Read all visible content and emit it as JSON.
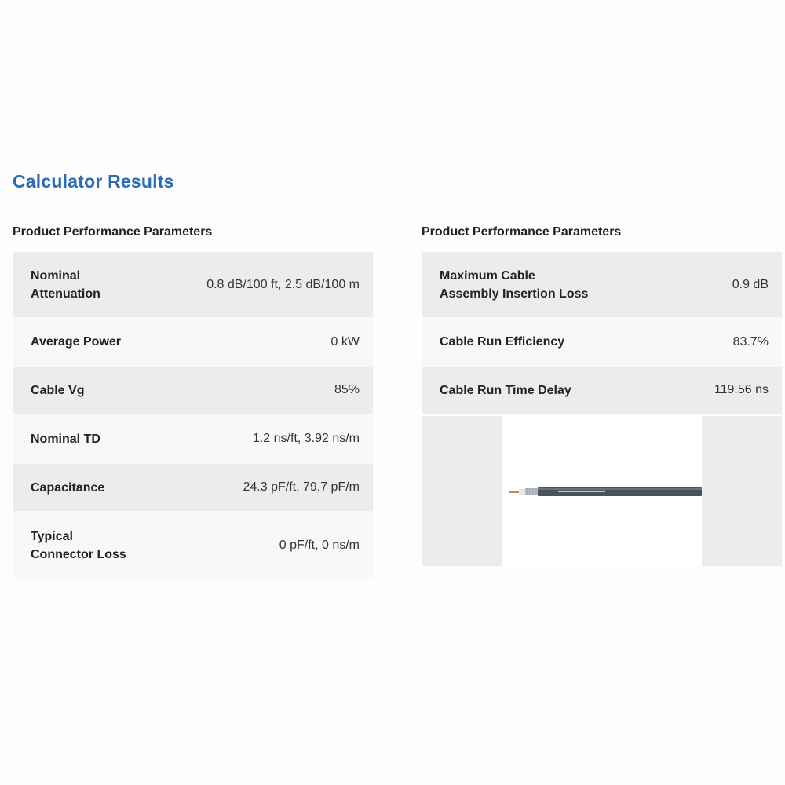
{
  "title": "Calculator Results",
  "left_panel": {
    "heading": "Product Performance Parameters",
    "rows": [
      {
        "label": "Nominal\nAttenuation",
        "value": "0.8 dB/100 ft, 2.5 dB/100 m"
      },
      {
        "label": "Average Power",
        "value": "0 kW"
      },
      {
        "label": "Cable Vg",
        "value": "85%"
      },
      {
        "label": "Nominal TD",
        "value": "1.2 ns/ft, 3.92 ns/m"
      },
      {
        "label": "Capacitance",
        "value": "24.3 pF/ft, 79.7 pF/m"
      },
      {
        "label": "Typical\nConnector Loss",
        "value": "0 pF/ft, 0 ns/m"
      }
    ]
  },
  "right_panel": {
    "heading": "Product Performance Parameters",
    "rows": [
      {
        "label": "Maximum Cable\nAssembly Insertion Loss",
        "value": "0.9 dB"
      },
      {
        "label": "Cable Run Efficiency",
        "value": "83.7%"
      },
      {
        "label": "Cable Run Time Delay",
        "value": "119.56 ns"
      }
    ],
    "product_image": "coaxial-cable-photo"
  },
  "colors": {
    "title": "#2b6cb5",
    "row_shade": "#ececec",
    "row_plain": "#f8f8f8",
    "cable_jacket": "#4a5158"
  }
}
